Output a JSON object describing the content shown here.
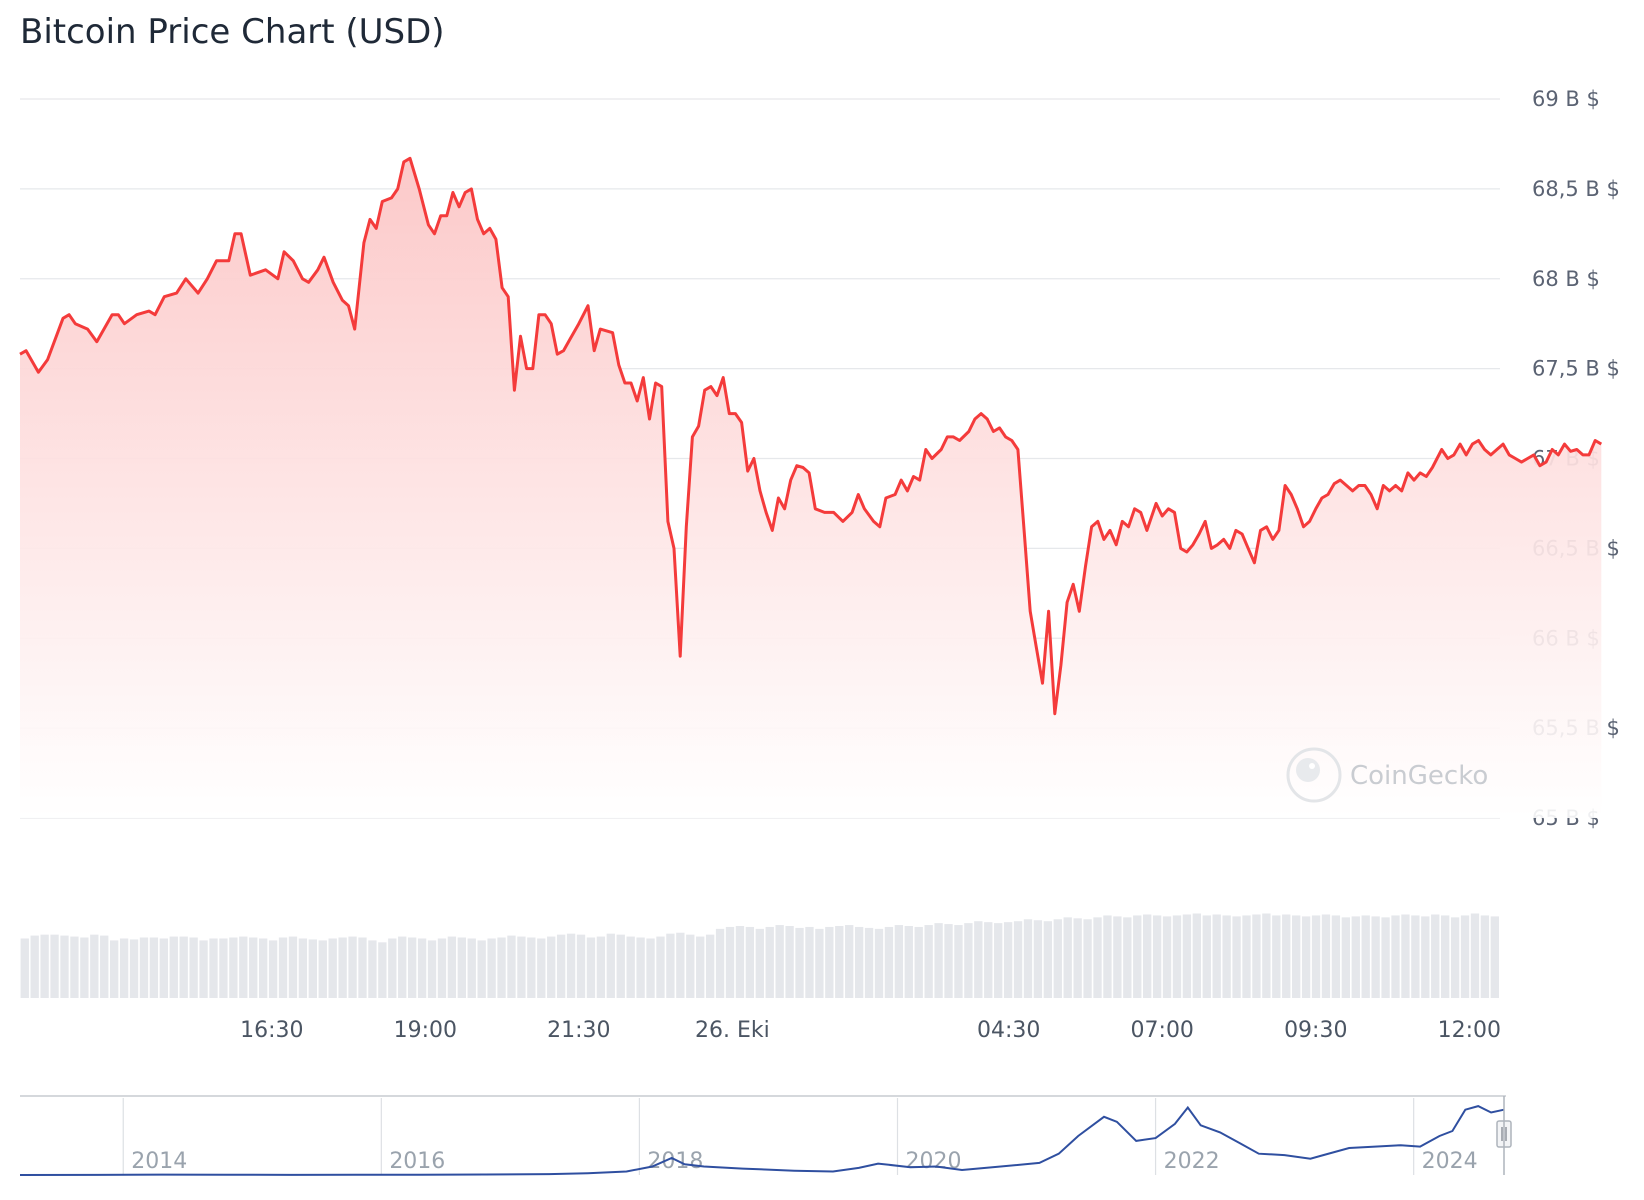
{
  "chart_data": {
    "type": "area",
    "title": "Bitcoin Price Chart (USD)",
    "y_unit_suffix": " B $",
    "ylim": [
      65,
      69
    ],
    "y_ticks": [
      "69 B $",
      "68,5 B $",
      "68 B $",
      "67,5 B $",
      "67 B $",
      "66,5 B $",
      "66 B $",
      "65,5 B $",
      "65 B $"
    ],
    "y_tick_values": [
      69,
      68.5,
      68,
      67.5,
      67,
      66.5,
      66,
      65.5,
      65
    ],
    "x_ticks": [
      "16:30",
      "19:00",
      "21:30",
      "26. Eki",
      "04:30",
      "07:00",
      "09:30",
      "12:00"
    ],
    "x_tick_hours": [
      16.5,
      19,
      21.5,
      24,
      28.5,
      31,
      33.5,
      36
    ],
    "x_range_hours": [
      12.4,
      36.5
    ],
    "grid": true,
    "line_color": "#f43b3b",
    "fill_color": "#fdd2d2",
    "volume_color": "#e5e7eb",
    "series": [
      {
        "price_points": [
          [
            12.4,
            67.58
          ],
          [
            12.5,
            67.6
          ],
          [
            12.7,
            67.48
          ],
          [
            12.85,
            67.55
          ],
          [
            13.1,
            67.78
          ],
          [
            13.2,
            67.8
          ],
          [
            13.3,
            67.75
          ],
          [
            13.5,
            67.72
          ],
          [
            13.65,
            67.65
          ],
          [
            13.9,
            67.8
          ],
          [
            14.0,
            67.8
          ],
          [
            14.1,
            67.75
          ],
          [
            14.3,
            67.8
          ],
          [
            14.5,
            67.82
          ],
          [
            14.6,
            67.8
          ],
          [
            14.75,
            67.9
          ],
          [
            14.95,
            67.92
          ],
          [
            15.1,
            68.0
          ],
          [
            15.3,
            67.92
          ],
          [
            15.45,
            68.0
          ],
          [
            15.6,
            68.1
          ],
          [
            15.8,
            68.1
          ],
          [
            15.9,
            68.25
          ],
          [
            16.0,
            68.25
          ],
          [
            16.15,
            68.02
          ],
          [
            16.4,
            68.05
          ],
          [
            16.6,
            68.0
          ],
          [
            16.7,
            68.15
          ],
          [
            16.85,
            68.1
          ],
          [
            17.0,
            68.0
          ],
          [
            17.1,
            67.98
          ],
          [
            17.25,
            68.05
          ],
          [
            17.35,
            68.12
          ],
          [
            17.5,
            67.98
          ],
          [
            17.65,
            67.88
          ],
          [
            17.75,
            67.85
          ],
          [
            17.85,
            67.72
          ],
          [
            18.0,
            68.2
          ],
          [
            18.1,
            68.33
          ],
          [
            18.2,
            68.28
          ],
          [
            18.3,
            68.43
          ],
          [
            18.45,
            68.45
          ],
          [
            18.55,
            68.5
          ],
          [
            18.65,
            68.65
          ],
          [
            18.75,
            68.67
          ],
          [
            18.9,
            68.5
          ],
          [
            19.05,
            68.3
          ],
          [
            19.15,
            68.25
          ],
          [
            19.25,
            68.35
          ],
          [
            19.35,
            68.35
          ],
          [
            19.45,
            68.48
          ],
          [
            19.55,
            68.4
          ],
          [
            19.65,
            68.48
          ],
          [
            19.75,
            68.5
          ],
          [
            19.85,
            68.33
          ],
          [
            19.95,
            68.25
          ],
          [
            20.05,
            68.28
          ],
          [
            20.15,
            68.22
          ],
          [
            20.25,
            67.95
          ],
          [
            20.35,
            67.9
          ],
          [
            20.45,
            67.38
          ],
          [
            20.55,
            67.68
          ],
          [
            20.65,
            67.5
          ],
          [
            20.75,
            67.5
          ],
          [
            20.85,
            67.8
          ],
          [
            20.95,
            67.8
          ],
          [
            21.05,
            67.75
          ],
          [
            21.15,
            67.58
          ],
          [
            21.25,
            67.6
          ],
          [
            21.35,
            67.66
          ],
          [
            21.5,
            67.75
          ],
          [
            21.65,
            67.85
          ],
          [
            21.75,
            67.6
          ],
          [
            21.85,
            67.72
          ],
          [
            22.05,
            67.7
          ],
          [
            22.15,
            67.52
          ],
          [
            22.25,
            67.42
          ],
          [
            22.35,
            67.42
          ],
          [
            22.45,
            67.32
          ],
          [
            22.55,
            67.45
          ],
          [
            22.65,
            67.22
          ],
          [
            22.75,
            67.42
          ],
          [
            22.85,
            67.4
          ],
          [
            22.95,
            66.65
          ],
          [
            23.05,
            66.5
          ],
          [
            23.15,
            65.9
          ],
          [
            23.25,
            66.62
          ],
          [
            23.35,
            67.12
          ],
          [
            23.45,
            67.18
          ],
          [
            23.55,
            67.38
          ],
          [
            23.65,
            67.4
          ],
          [
            23.75,
            67.35
          ],
          [
            23.85,
            67.45
          ],
          [
            23.95,
            67.25
          ],
          [
            24.05,
            67.25
          ],
          [
            24.15,
            67.2
          ],
          [
            24.25,
            66.93
          ],
          [
            24.35,
            67.0
          ],
          [
            24.45,
            66.82
          ],
          [
            24.55,
            66.7
          ],
          [
            24.65,
            66.6
          ],
          [
            24.75,
            66.78
          ],
          [
            24.85,
            66.72
          ],
          [
            24.95,
            66.88
          ],
          [
            25.05,
            66.96
          ],
          [
            25.15,
            66.95
          ],
          [
            25.25,
            66.92
          ],
          [
            25.35,
            66.72
          ],
          [
            25.5,
            66.7
          ],
          [
            25.65,
            66.7
          ],
          [
            25.8,
            66.65
          ],
          [
            25.95,
            66.7
          ],
          [
            26.05,
            66.8
          ],
          [
            26.15,
            66.72
          ],
          [
            26.3,
            66.65
          ],
          [
            26.4,
            66.62
          ],
          [
            26.5,
            66.78
          ],
          [
            26.65,
            66.8
          ],
          [
            26.75,
            66.88
          ],
          [
            26.85,
            66.82
          ],
          [
            26.95,
            66.9
          ],
          [
            27.05,
            66.88
          ],
          [
            27.15,
            67.05
          ],
          [
            27.25,
            67.0
          ],
          [
            27.4,
            67.05
          ],
          [
            27.5,
            67.12
          ],
          [
            27.6,
            67.12
          ],
          [
            27.7,
            67.1
          ],
          [
            27.85,
            67.15
          ],
          [
            27.95,
            67.22
          ],
          [
            28.05,
            67.25
          ],
          [
            28.15,
            67.22
          ],
          [
            28.25,
            67.15
          ],
          [
            28.35,
            67.17
          ],
          [
            28.45,
            67.12
          ],
          [
            28.55,
            67.1
          ],
          [
            28.65,
            67.05
          ],
          [
            28.75,
            66.6
          ],
          [
            28.85,
            66.15
          ],
          [
            28.95,
            65.95
          ],
          [
            29.05,
            65.75
          ],
          [
            29.15,
            66.15
          ],
          [
            29.25,
            65.58
          ],
          [
            29.35,
            65.85
          ],
          [
            29.45,
            66.2
          ],
          [
            29.55,
            66.3
          ],
          [
            29.65,
            66.15
          ],
          [
            29.75,
            66.4
          ],
          [
            29.85,
            66.62
          ],
          [
            29.95,
            66.65
          ],
          [
            30.05,
            66.55
          ],
          [
            30.15,
            66.6
          ],
          [
            30.25,
            66.52
          ],
          [
            30.35,
            66.65
          ],
          [
            30.45,
            66.62
          ],
          [
            30.55,
            66.72
          ],
          [
            30.65,
            66.7
          ],
          [
            30.75,
            66.6
          ],
          [
            30.9,
            66.75
          ],
          [
            31.0,
            66.68
          ],
          [
            31.1,
            66.72
          ],
          [
            31.2,
            66.7
          ],
          [
            31.3,
            66.5
          ],
          [
            31.4,
            66.48
          ],
          [
            31.5,
            66.52
          ],
          [
            31.6,
            66.58
          ],
          [
            31.7,
            66.65
          ],
          [
            31.8,
            66.5
          ],
          [
            31.9,
            66.52
          ],
          [
            32.0,
            66.55
          ],
          [
            32.1,
            66.5
          ],
          [
            32.2,
            66.6
          ],
          [
            32.3,
            66.58
          ],
          [
            32.4,
            66.5
          ],
          [
            32.5,
            66.42
          ],
          [
            32.6,
            66.6
          ],
          [
            32.7,
            66.62
          ],
          [
            32.8,
            66.55
          ],
          [
            32.9,
            66.6
          ],
          [
            33.0,
            66.85
          ],
          [
            33.1,
            66.8
          ],
          [
            33.2,
            66.72
          ],
          [
            33.3,
            66.62
          ],
          [
            33.4,
            66.65
          ],
          [
            33.5,
            66.72
          ],
          [
            33.6,
            66.78
          ],
          [
            33.7,
            66.8
          ],
          [
            33.8,
            66.86
          ],
          [
            33.9,
            66.88
          ],
          [
            34.0,
            66.85
          ],
          [
            34.1,
            66.82
          ],
          [
            34.2,
            66.85
          ],
          [
            34.3,
            66.85
          ],
          [
            34.4,
            66.8
          ],
          [
            34.5,
            66.72
          ],
          [
            34.6,
            66.85
          ],
          [
            34.7,
            66.82
          ],
          [
            34.8,
            66.85
          ],
          [
            34.9,
            66.82
          ],
          [
            35.0,
            66.92
          ],
          [
            35.1,
            66.88
          ],
          [
            35.2,
            66.92
          ],
          [
            35.3,
            66.9
          ],
          [
            35.4,
            66.95
          ],
          [
            35.55,
            67.05
          ],
          [
            35.65,
            67.0
          ],
          [
            35.75,
            67.02
          ],
          [
            35.85,
            67.08
          ],
          [
            35.95,
            67.02
          ],
          [
            36.05,
            67.08
          ],
          [
            36.15,
            67.1
          ],
          [
            36.25,
            67.05
          ],
          [
            36.35,
            67.02
          ],
          [
            36.45,
            67.05
          ],
          [
            36.55,
            67.08
          ],
          [
            36.65,
            67.02
          ],
          [
            36.75,
            67.0
          ],
          [
            36.85,
            66.98
          ],
          [
            36.95,
            67.0
          ],
          [
            37.05,
            67.02
          ],
          [
            37.15,
            66.96
          ],
          [
            37.25,
            66.98
          ],
          [
            37.35,
            67.05
          ],
          [
            37.45,
            67.02
          ],
          [
            37.55,
            67.08
          ],
          [
            37.65,
            67.04
          ],
          [
            37.75,
            67.05
          ],
          [
            37.85,
            67.02
          ],
          [
            37.95,
            67.02
          ],
          [
            38.05,
            67.1
          ],
          [
            38.15,
            67.08
          ]
        ]
      }
    ],
    "volume_relative": [
      0.62,
      0.65,
      0.66,
      0.66,
      0.65,
      0.64,
      0.63,
      0.66,
      0.65,
      0.6,
      0.62,
      0.61,
      0.63,
      0.63,
      0.62,
      0.64,
      0.64,
      0.63,
      0.6,
      0.62,
      0.62,
      0.63,
      0.64,
      0.63,
      0.62,
      0.6,
      0.63,
      0.64,
      0.62,
      0.61,
      0.6,
      0.62,
      0.63,
      0.64,
      0.63,
      0.6,
      0.58,
      0.62,
      0.64,
      0.63,
      0.62,
      0.6,
      0.62,
      0.64,
      0.63,
      0.62,
      0.6,
      0.62,
      0.63,
      0.65,
      0.64,
      0.63,
      0.62,
      0.64,
      0.66,
      0.67,
      0.66,
      0.63,
      0.64,
      0.67,
      0.66,
      0.64,
      0.63,
      0.62,
      0.64,
      0.67,
      0.68,
      0.66,
      0.64,
      0.66,
      0.72,
      0.74,
      0.75,
      0.74,
      0.72,
      0.74,
      0.76,
      0.75,
      0.73,
      0.74,
      0.72,
      0.74,
      0.75,
      0.76,
      0.74,
      0.73,
      0.72,
      0.74,
      0.76,
      0.75,
      0.74,
      0.76,
      0.78,
      0.77,
      0.76,
      0.78,
      0.8,
      0.79,
      0.78,
      0.79,
      0.8,
      0.82,
      0.81,
      0.8,
      0.82,
      0.84,
      0.83,
      0.82,
      0.84,
      0.86,
      0.85,
      0.84,
      0.86,
      0.87,
      0.86,
      0.85,
      0.86,
      0.87,
      0.88,
      0.86,
      0.87,
      0.86,
      0.85,
      0.86,
      0.87,
      0.88,
      0.86,
      0.87,
      0.86,
      0.85,
      0.86,
      0.87,
      0.86,
      0.84,
      0.85,
      0.86,
      0.85,
      0.84,
      0.86,
      0.87,
      0.86,
      0.85,
      0.87,
      0.86,
      0.84,
      0.86,
      0.88,
      0.86,
      0.85
    ]
  },
  "navigator": {
    "year_labels": [
      "2014",
      "2016",
      "2018",
      "2020",
      "2022",
      "2024"
    ],
    "year_positions": [
      2013.7,
      2015.7,
      2017.7,
      2019.7,
      2021.7,
      2023.7
    ],
    "x_range_years": [
      2012.9,
      2024.4
    ],
    "line_color": "#2f4fa0",
    "history": [
      [
        2012.9,
        0.0
      ],
      [
        2013.5,
        0.002
      ],
      [
        2014.0,
        0.005
      ],
      [
        2014.5,
        0.004
      ],
      [
        2015.0,
        0.002
      ],
      [
        2015.5,
        0.003
      ],
      [
        2016.0,
        0.004
      ],
      [
        2016.5,
        0.007
      ],
      [
        2017.0,
        0.012
      ],
      [
        2017.3,
        0.025
      ],
      [
        2017.6,
        0.05
      ],
      [
        2017.8,
        0.12
      ],
      [
        2017.95,
        0.24
      ],
      [
        2018.05,
        0.15
      ],
      [
        2018.2,
        0.12
      ],
      [
        2018.5,
        0.09
      ],
      [
        2018.9,
        0.06
      ],
      [
        2019.2,
        0.05
      ],
      [
        2019.4,
        0.1
      ],
      [
        2019.55,
        0.16
      ],
      [
        2019.8,
        0.11
      ],
      [
        2020.0,
        0.12
      ],
      [
        2020.2,
        0.07
      ],
      [
        2020.5,
        0.12
      ],
      [
        2020.8,
        0.17
      ],
      [
        2020.95,
        0.3
      ],
      [
        2021.1,
        0.55
      ],
      [
        2021.3,
        0.82
      ],
      [
        2021.4,
        0.75
      ],
      [
        2021.55,
        0.48
      ],
      [
        2021.7,
        0.52
      ],
      [
        2021.85,
        0.72
      ],
      [
        2021.95,
        0.95
      ],
      [
        2022.05,
        0.7
      ],
      [
        2022.2,
        0.6
      ],
      [
        2022.35,
        0.45
      ],
      [
        2022.5,
        0.3
      ],
      [
        2022.7,
        0.28
      ],
      [
        2022.9,
        0.23
      ],
      [
        2023.0,
        0.28
      ],
      [
        2023.2,
        0.38
      ],
      [
        2023.4,
        0.4
      ],
      [
        2023.6,
        0.42
      ],
      [
        2023.75,
        0.4
      ],
      [
        2023.9,
        0.55
      ],
      [
        2024.0,
        0.62
      ],
      [
        2024.1,
        0.92
      ],
      [
        2024.2,
        0.97
      ],
      [
        2024.3,
        0.88
      ],
      [
        2024.4,
        0.92
      ]
    ]
  },
  "watermark": "CoinGecko"
}
